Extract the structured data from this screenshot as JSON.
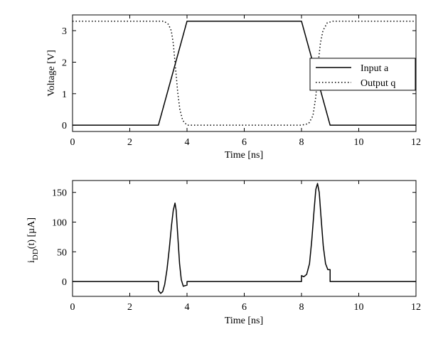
{
  "chart_data": [
    {
      "type": "line",
      "title": "",
      "xlabel": "Time [ns]",
      "ylabel": "Voltage [V]",
      "xlim": [
        0,
        12
      ],
      "ylim": [
        -0.2,
        3.5
      ],
      "xticks": [
        0,
        2,
        4,
        6,
        8,
        10,
        12
      ],
      "yticks": [
        0,
        1,
        2,
        3
      ],
      "grid": false,
      "legend": {
        "position": "right"
      },
      "series": [
        {
          "name": "Input a",
          "style": "solid",
          "color": "#000000",
          "x": [
            0,
            3,
            4,
            8,
            9,
            12
          ],
          "y": [
            0,
            0,
            3.3,
            3.3,
            0,
            0
          ]
        },
        {
          "name": "Output q",
          "style": "dotted",
          "color": "#000000",
          "x": [
            0,
            3.2,
            3.35,
            3.45,
            3.52,
            3.58,
            3.62,
            3.68,
            3.75,
            3.85,
            4.0,
            8.0,
            8.25,
            8.4,
            8.5,
            8.56,
            8.6,
            8.66,
            8.75,
            8.9,
            9.1,
            12
          ],
          "y": [
            3.3,
            3.3,
            3.2,
            3.0,
            2.6,
            2.0,
            1.6,
            1.0,
            0.5,
            0.15,
            0,
            0,
            0.05,
            0.3,
            0.9,
            1.6,
            2.1,
            2.6,
            3.0,
            3.25,
            3.3,
            3.3
          ]
        }
      ]
    },
    {
      "type": "line",
      "title": "",
      "xlabel": "Time [ns]",
      "ylabel_main": "i",
      "ylabel_sub": "DD",
      "ylabel_rest": "(t) [µA]",
      "xlim": [
        0,
        12
      ],
      "ylim": [
        -25,
        170
      ],
      "xticks": [
        0,
        2,
        4,
        6,
        8,
        10,
        12
      ],
      "yticks": [
        0,
        50,
        100,
        150
      ],
      "grid": false,
      "series": [
        {
          "name": "",
          "style": "solid",
          "color": "#000000",
          "x": [
            0,
            3.0,
            3.0,
            3.08,
            3.15,
            3.22,
            3.3,
            3.38,
            3.46,
            3.52,
            3.58,
            3.62,
            3.68,
            3.74,
            3.8,
            3.87,
            3.93,
            4.0,
            4.0,
            8.0,
            8.0,
            8.08,
            8.18,
            8.28,
            8.36,
            8.44,
            8.5,
            8.56,
            8.62,
            8.68,
            8.76,
            8.84,
            8.92,
            9.0,
            9.0,
            12
          ],
          "y": [
            0,
            0,
            -15,
            -20,
            -17,
            -5,
            20,
            55,
            95,
            120,
            132,
            120,
            75,
            30,
            3,
            -8,
            -7,
            -6,
            0,
            0,
            10,
            8,
            12,
            30,
            70,
            120,
            155,
            165,
            150,
            110,
            60,
            30,
            20,
            20,
            0,
            0
          ]
        }
      ]
    }
  ]
}
